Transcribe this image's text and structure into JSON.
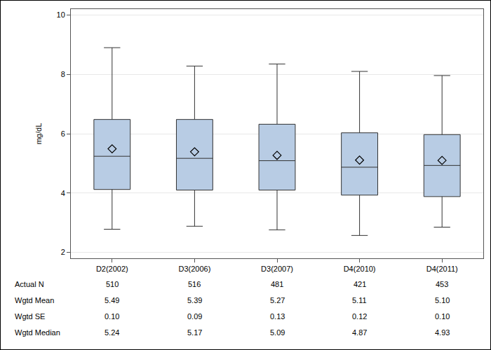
{
  "chart_data": {
    "type": "box",
    "y_label": "mg/dL",
    "categories": [
      "D2(2002)",
      "D3(2006)",
      "D3(2007)",
      "D4(2010)",
      "D4(2011)"
    ],
    "boxes": {
      "whisker_low": [
        2.78,
        2.88,
        2.76,
        2.57,
        2.85
      ],
      "q1": [
        4.12,
        4.1,
        4.1,
        3.93,
        3.88
      ],
      "median": [
        5.24,
        5.17,
        5.09,
        4.87,
        4.93
      ],
      "q3": [
        6.48,
        6.48,
        6.32,
        6.03,
        5.97
      ],
      "whisker_high": [
        8.9,
        8.28,
        8.35,
        8.1,
        7.96
      ],
      "mean": [
        5.49,
        5.39,
        5.27,
        5.11,
        5.1
      ]
    },
    "color": "#b8cce4",
    "marker": "diamond",
    "ylim": [
      1.8,
      10.2
    ],
    "yticks": [
      2,
      4,
      6,
      8,
      10
    ],
    "grid": true,
    "table": {
      "rows": [
        {
          "label": "Actual N",
          "values": [
            "510",
            "516",
            "481",
            "421",
            "453"
          ]
        },
        {
          "label": "Wgtd Mean",
          "values": [
            "5.49",
            "5.39",
            "5.27",
            "5.11",
            "5.10"
          ]
        },
        {
          "label": "Wgtd SE",
          "values": [
            "0.10",
            "0.09",
            "0.13",
            "0.12",
            "0.10"
          ]
        },
        {
          "label": "Wgtd Median",
          "values": [
            "5.24",
            "5.17",
            "5.09",
            "4.87",
            "4.93"
          ]
        }
      ]
    }
  }
}
